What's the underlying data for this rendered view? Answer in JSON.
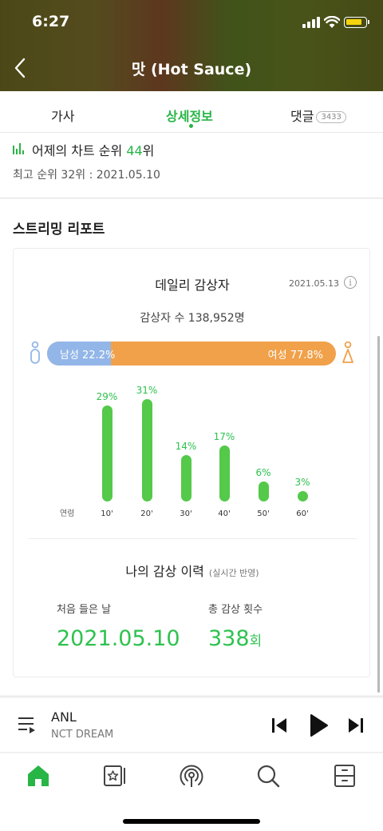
{
  "status_bar": {
    "time": "6:27"
  },
  "header": {
    "title": "맛 (Hot Sauce)"
  },
  "tabs": [
    {
      "label": "가사",
      "active": false
    },
    {
      "label": "상세정보",
      "active": true
    },
    {
      "label": "댓글",
      "badge": "3433",
      "active": false
    }
  ],
  "chart_info": {
    "rank_prefix": "어제의 차트 순위",
    "rank_value": "44",
    "rank_suffix": "위",
    "best_rank": "최고 순위 32위 : 2021.05.10"
  },
  "streaming": {
    "section_title": "스트리밍 리포트",
    "card_title": "데일리 감상자",
    "date": "2021.05.13",
    "info_glyph": "i",
    "listeners": "감상자 수 138,952명",
    "gender": {
      "male_label": "남성 22.2%",
      "male_percent": 22.2,
      "female_label": "여성 77.8%",
      "female_percent": 77.8,
      "male_color": "#93b6e8",
      "female_color": "#f0a14a"
    },
    "age_axis_label": "연령",
    "ages": [
      {
        "age": "10'",
        "percent": 29,
        "label": "29%"
      },
      {
        "age": "20'",
        "percent": 31,
        "label": "31%"
      },
      {
        "age": "30'",
        "percent": 14,
        "label": "14%"
      },
      {
        "age": "40'",
        "percent": 17,
        "label": "17%"
      },
      {
        "age": "50'",
        "percent": 6,
        "label": "6%"
      },
      {
        "age": "60'",
        "percent": 3,
        "label": "3%"
      }
    ],
    "bar_color": "#54c94a"
  },
  "history": {
    "title": "나의 감상 이력",
    "subtitle": "(실시간 반영)",
    "first_label": "처음 들은 날",
    "first_value": "2021.05.10",
    "count_label": "총 감상 횟수",
    "count_value": "338",
    "count_unit": "회"
  },
  "player": {
    "track": "ANL",
    "artist": "NCT DREAM"
  },
  "bottom_nav": [
    {
      "icon": "home-icon",
      "active": true
    },
    {
      "icon": "library-icon",
      "active": false
    },
    {
      "icon": "podcast-icon",
      "active": false
    },
    {
      "icon": "search-icon",
      "active": false
    },
    {
      "icon": "storage-icon",
      "active": false
    }
  ],
  "accent_color": "#27b546"
}
